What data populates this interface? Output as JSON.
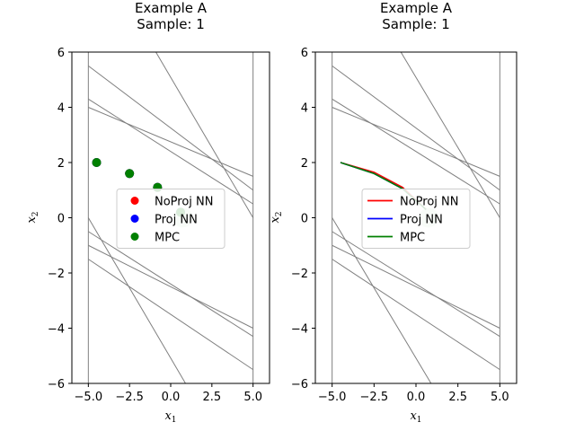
{
  "chart_data": [
    {
      "type": "scatter",
      "title_line1": "Example A",
      "title_line2": "Sample: 1",
      "xlabel": "x",
      "xlabel_sub": "1",
      "ylabel": "x",
      "ylabel_sub": "2",
      "xlim": [
        -6,
        6
      ],
      "ylim": [
        -6,
        6
      ],
      "xticks": [
        -5.0,
        -2.5,
        0.0,
        2.5,
        5.0
      ],
      "xtick_labels": [
        "−5.0",
        "−2.5",
        "0.0",
        "2.5",
        "5.0"
      ],
      "yticks": [
        -6,
        -4,
        -2,
        0,
        2,
        4,
        6
      ],
      "ytick_labels": [
        "−6",
        "−4",
        "−2",
        "0",
        "2",
        "4",
        "6"
      ],
      "legend_position": "center",
      "constraint_color": "#808080",
      "ellipse_color": "#cfe8d2",
      "ellipse": {
        "cx": 0.75,
        "cy": 0.0,
        "rx": 0.6,
        "ry": 0.35
      },
      "constraints": [
        {
          "from": [
            -5.0,
            -6.0
          ],
          "to": [
            -5.0,
            6.0
          ]
        },
        {
          "from": [
            5.0,
            -6.0
          ],
          "to": [
            5.0,
            6.0
          ]
        },
        {
          "from": [
            -5.0,
            5.5
          ],
          "to": [
            5.0,
            1.0
          ]
        },
        {
          "from": [
            -5.0,
            4.3
          ],
          "to": [
            5.0,
            0.5
          ]
        },
        {
          "from": [
            -5.0,
            4.0
          ],
          "to": [
            5.0,
            1.5
          ]
        },
        {
          "from": [
            -0.9,
            6.0
          ],
          "to": [
            5.0,
            0.0
          ]
        },
        {
          "from": [
            -5.0,
            0.0
          ],
          "to": [
            0.9,
            -6.0
          ]
        },
        {
          "from": [
            -5.0,
            -0.5
          ],
          "to": [
            5.0,
            -4.3
          ]
        },
        {
          "from": [
            -5.0,
            -1.0
          ],
          "to": [
            5.0,
            -4.0
          ]
        },
        {
          "from": [
            -5.0,
            -1.5
          ],
          "to": [
            5.0,
            -5.5
          ]
        }
      ],
      "series": [
        {
          "name": "NoProj NN",
          "color": "#ff0000",
          "x": [
            -4.5,
            -2.5,
            -0.8,
            0.6
          ],
          "y": [
            2.0,
            1.6,
            1.1,
            0.2
          ]
        },
        {
          "name": "Proj NN",
          "color": "#0000ff",
          "x": [
            -4.5,
            -2.5,
            -0.8,
            0.6
          ],
          "y": [
            2.0,
            1.6,
            1.1,
            0.2
          ]
        },
        {
          "name": "MPC",
          "color": "#008000",
          "x": [
            -4.5,
            -2.5,
            -0.8,
            0.6
          ],
          "y": [
            2.0,
            1.6,
            1.1,
            0.2
          ]
        }
      ]
    },
    {
      "type": "line",
      "title_line1": "Example A",
      "title_line2": "Sample: 1",
      "xlabel": "x",
      "xlabel_sub": "1",
      "ylabel": "x",
      "ylabel_sub": "2",
      "xlim": [
        -6,
        6
      ],
      "ylim": [
        -6,
        6
      ],
      "xticks": [
        -5.0,
        -2.5,
        0.0,
        2.5,
        5.0
      ],
      "xtick_labels": [
        "−5.0",
        "−2.5",
        "0.0",
        "2.5",
        "5.0"
      ],
      "yticks": [
        -6,
        -4,
        -2,
        0,
        2,
        4,
        6
      ],
      "ytick_labels": [
        "−6",
        "−4",
        "−2",
        "0",
        "2",
        "4",
        "6"
      ],
      "legend_position": "center",
      "constraint_color": "#808080",
      "ellipse_color": "#cfe8d2",
      "ellipse": {
        "cx": 0.75,
        "cy": 0.0,
        "rx": 0.6,
        "ry": 0.35
      },
      "constraints": [
        {
          "from": [
            -5.0,
            -6.0
          ],
          "to": [
            -5.0,
            6.0
          ]
        },
        {
          "from": [
            5.0,
            -6.0
          ],
          "to": [
            5.0,
            6.0
          ]
        },
        {
          "from": [
            -5.0,
            5.5
          ],
          "to": [
            5.0,
            1.0
          ]
        },
        {
          "from": [
            -5.0,
            4.3
          ],
          "to": [
            5.0,
            0.5
          ]
        },
        {
          "from": [
            -5.0,
            4.0
          ],
          "to": [
            5.0,
            1.5
          ]
        },
        {
          "from": [
            -0.9,
            6.0
          ],
          "to": [
            5.0,
            0.0
          ]
        },
        {
          "from": [
            -5.0,
            0.0
          ],
          "to": [
            0.9,
            -6.0
          ]
        },
        {
          "from": [
            -5.0,
            -0.5
          ],
          "to": [
            5.0,
            -4.3
          ]
        },
        {
          "from": [
            -5.0,
            -1.0
          ],
          "to": [
            5.0,
            -4.0
          ]
        },
        {
          "from": [
            -5.0,
            -1.5
          ],
          "to": [
            5.0,
            -5.5
          ]
        }
      ],
      "series": [
        {
          "name": "NoProj NN",
          "color": "#ff0000",
          "x": [
            -4.5,
            -2.5,
            -0.8,
            0.6
          ],
          "y": [
            2.0,
            1.65,
            1.1,
            0.3
          ]
        },
        {
          "name": "Proj NN",
          "color": "#0000ff",
          "x": [
            -4.5,
            -2.5,
            -0.8,
            0.6
          ],
          "y": [
            2.0,
            1.6,
            1.05,
            0.3
          ]
        },
        {
          "name": "MPC",
          "color": "#008000",
          "x": [
            -4.5,
            -2.5,
            -0.8,
            0.6
          ],
          "y": [
            2.0,
            1.6,
            1.05,
            0.3
          ]
        }
      ]
    }
  ]
}
